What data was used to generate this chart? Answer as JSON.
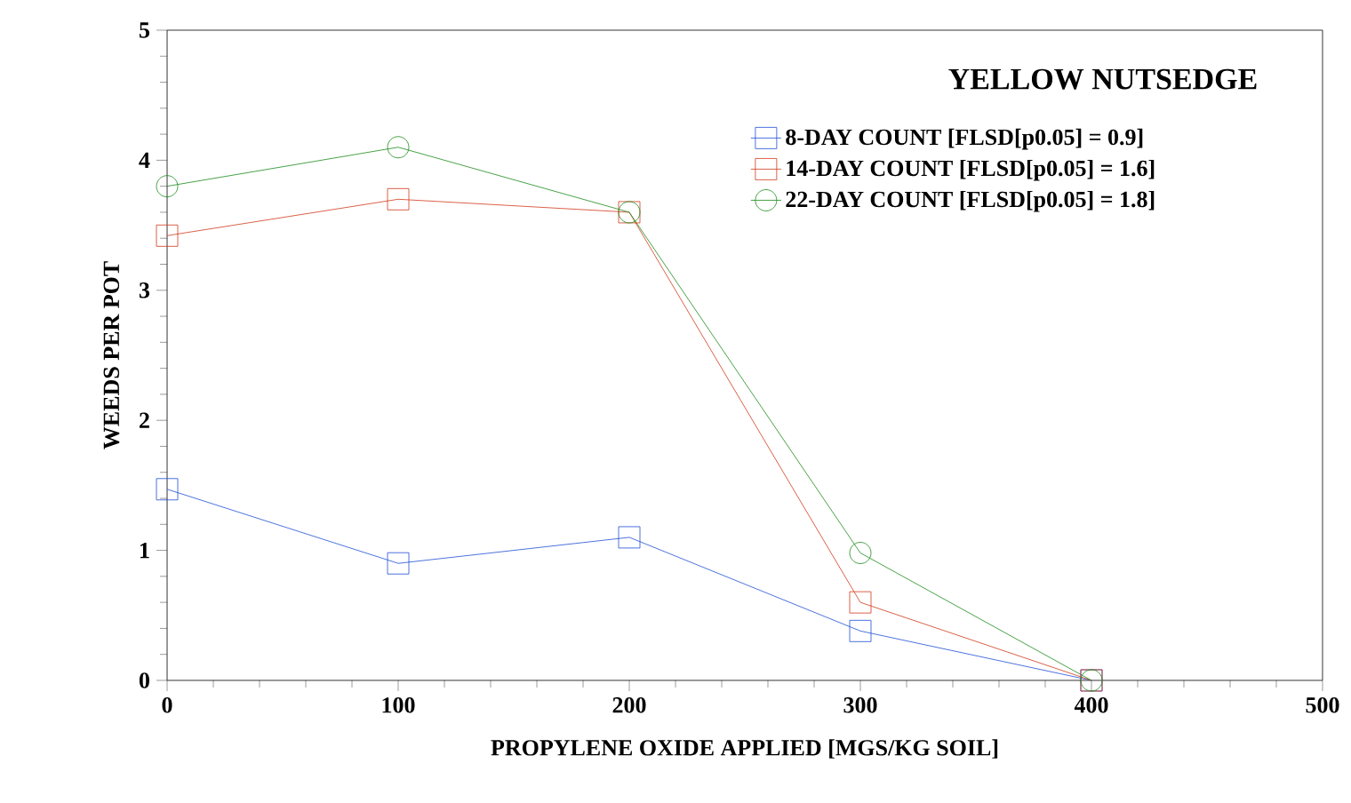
{
  "chart_data": {
    "type": "line",
    "title": "YELLOW NUTSEDGE",
    "xlabel": "PROPYLENE OXIDE APPLIED [MGS/KG SOIL]",
    "ylabel": "WEEDS PER POT",
    "x": [
      0,
      100,
      200,
      300,
      400
    ],
    "series": [
      {
        "name": "8-DAY COUNT [FLSD[p0.05] = 0.9]",
        "color": "#1f4fd6",
        "marker": "square",
        "values": [
          1.47,
          0.9,
          1.1,
          0.38,
          0
        ]
      },
      {
        "name": "14-DAY COUNT [FLSD[p0.05] = 1.6]",
        "color": "#d03a1a",
        "marker": "square",
        "values": [
          3.42,
          3.7,
          3.6,
          0.6,
          0
        ]
      },
      {
        "name": "22-DAY COUNT [FLSD[p0.05] = 1.8]",
        "color": "#1a8a1a",
        "marker": "circle",
        "values": [
          3.8,
          4.1,
          3.6,
          0.98,
          0
        ]
      }
    ],
    "xlim": [
      0,
      500
    ],
    "xticks": [
      0,
      100,
      200,
      300,
      400,
      500
    ],
    "ylim": [
      0,
      5
    ],
    "yticks": [
      0,
      1,
      2,
      3,
      4,
      5
    ],
    "grid": false,
    "legend": "top right",
    "line_style": "solid"
  }
}
